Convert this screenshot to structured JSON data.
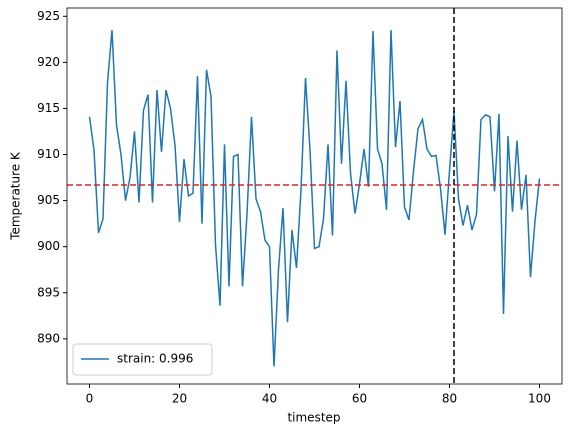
{
  "chart_data": {
    "type": "line",
    "x_label": "timestep",
    "y_label": "Temperature K",
    "x": [
      0,
      1,
      2,
      3,
      4,
      5,
      6,
      7,
      8,
      9,
      10,
      11,
      12,
      13,
      14,
      15,
      16,
      17,
      18,
      19,
      20,
      21,
      22,
      23,
      24,
      25,
      26,
      27,
      28,
      29,
      30,
      31,
      32,
      33,
      34,
      35,
      36,
      37,
      38,
      39,
      40,
      41,
      42,
      43,
      44,
      45,
      46,
      47,
      48,
      49,
      50,
      51,
      52,
      53,
      54,
      55,
      56,
      57,
      58,
      59,
      60,
      61,
      62,
      63,
      64,
      65,
      66,
      67,
      68,
      69,
      70,
      71,
      72,
      73,
      74,
      75,
      76,
      77,
      78,
      79,
      80,
      81,
      82,
      83,
      84,
      85,
      86,
      87,
      88,
      89,
      90,
      91,
      92,
      93,
      94,
      95,
      96,
      97,
      98,
      99,
      100
    ],
    "series": [
      {
        "name": "strain: 0.996",
        "color": "#1f77b4",
        "values": [
          914.1,
          910.5,
          901.5,
          903,
          917.8,
          923.5,
          913.2,
          910,
          905,
          907.5,
          912.5,
          904.8,
          914.8,
          916.5,
          904.8,
          917,
          910.3,
          917,
          915,
          911,
          902.7,
          909.5,
          905.5,
          905.8,
          918.5,
          902.5,
          919.2,
          916.3,
          900.2,
          893.6,
          911.1,
          895.7,
          909.8,
          910,
          895.7,
          903.5,
          914.1,
          905.2,
          903.8,
          900.7,
          900,
          887,
          897.5,
          904.2,
          891.8,
          901.8,
          897.7,
          906.2,
          918.3,
          910.5,
          899.8,
          900,
          903,
          911.1,
          901.2,
          921.3,
          909,
          918,
          908,
          903.6,
          906.8,
          910.6,
          906.5,
          923.4,
          910.6,
          909,
          904,
          923.5,
          910.8,
          915.8,
          904.3,
          902.9,
          908.2,
          912.8,
          913.8,
          910.6,
          909.8,
          909.9,
          906.3,
          901.3,
          908.2,
          914.7,
          905.2,
          902.3,
          904.5,
          901.8,
          903.5,
          913.8,
          914.3,
          914.1,
          906,
          914.4,
          892.7,
          912,
          903.8,
          911.5,
          904,
          907.8,
          896.7,
          902.8,
          907.4
        ]
      }
    ],
    "hline": {
      "value": 906.7,
      "color": "#d62728"
    },
    "vline": {
      "value": 81,
      "color": "#000000"
    },
    "xlim": [
      -5,
      105
    ],
    "xticks": [
      0,
      20,
      40,
      60,
      80,
      100
    ],
    "ylim": [
      885.1,
      925.9
    ],
    "yticks": [
      890,
      895,
      900,
      905,
      910,
      915,
      920,
      925
    ],
    "legend": "lower left"
  }
}
